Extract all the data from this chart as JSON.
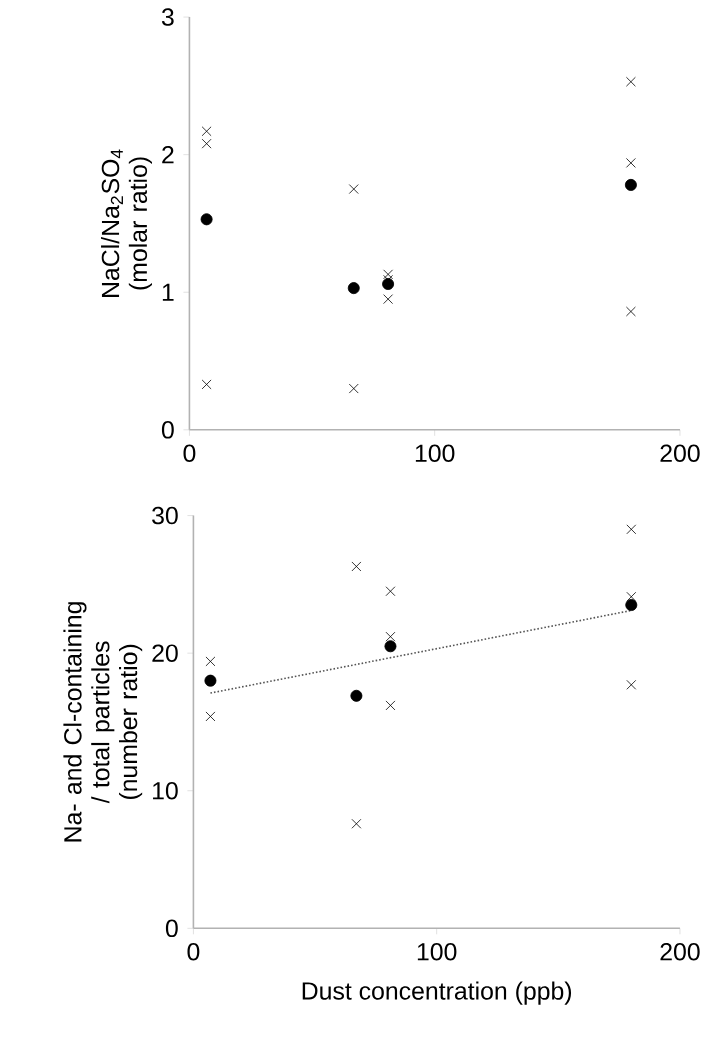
{
  "chart_data": [
    {
      "type": "scatter",
      "ylabel": "NaCl/Na$_{2}$SO$_{4}$ (molar ratio)",
      "xlim": [
        0,
        200
      ],
      "ylim": [
        0,
        3
      ],
      "xticks": [
        0,
        100,
        200
      ],
      "yticks": [
        0,
        1,
        2,
        3
      ],
      "grid": false,
      "series": [
        {
          "color": "#000000",
          "marker": "circle",
          "x": [
            7,
            67,
            81,
            180
          ],
          "values": [
            1.53,
            1.03,
            1.06,
            1.78
          ]
        },
        {
          "color": "#000000",
          "marker": "cross",
          "x": [
            7,
            7,
            7,
            67,
            67,
            81,
            81,
            81,
            180,
            180,
            180
          ],
          "values": [
            2.17,
            2.08,
            0.33,
            1.75,
            0.3,
            1.13,
            1.09,
            0.95,
            2.53,
            1.94,
            0.86
          ]
        }
      ]
    },
    {
      "type": "scatter",
      "xlabel": "Dust concentration (ppb)",
      "ylabel": "Na- and Cl-containing / total particles (number ratio)",
      "xlim": [
        0,
        200
      ],
      "ylim": [
        0,
        30
      ],
      "xticks": [
        0,
        100,
        200
      ],
      "yticks": [
        0,
        10,
        20,
        30
      ],
      "grid": false,
      "series": [
        {
          "color": "#000000",
          "marker": "circle",
          "x": [
            7,
            67,
            81,
            180
          ],
          "values": [
            18.0,
            16.9,
            20.5,
            23.5
          ]
        },
        {
          "color": "#000000",
          "marker": "cross",
          "x": [
            7,
            7,
            67,
            67,
            81,
            81,
            81,
            180,
            180,
            180
          ],
          "values": [
            19.4,
            15.4,
            26.3,
            7.6,
            24.5,
            21.2,
            16.2,
            29.0,
            24.1,
            17.7
          ]
        },
        {
          "type": "line",
          "color": "#555555",
          "marker": "none",
          "line_style": "dotted",
          "x": [
            7,
            180
          ],
          "values": [
            17.1,
            23.1
          ]
        }
      ]
    }
  ]
}
